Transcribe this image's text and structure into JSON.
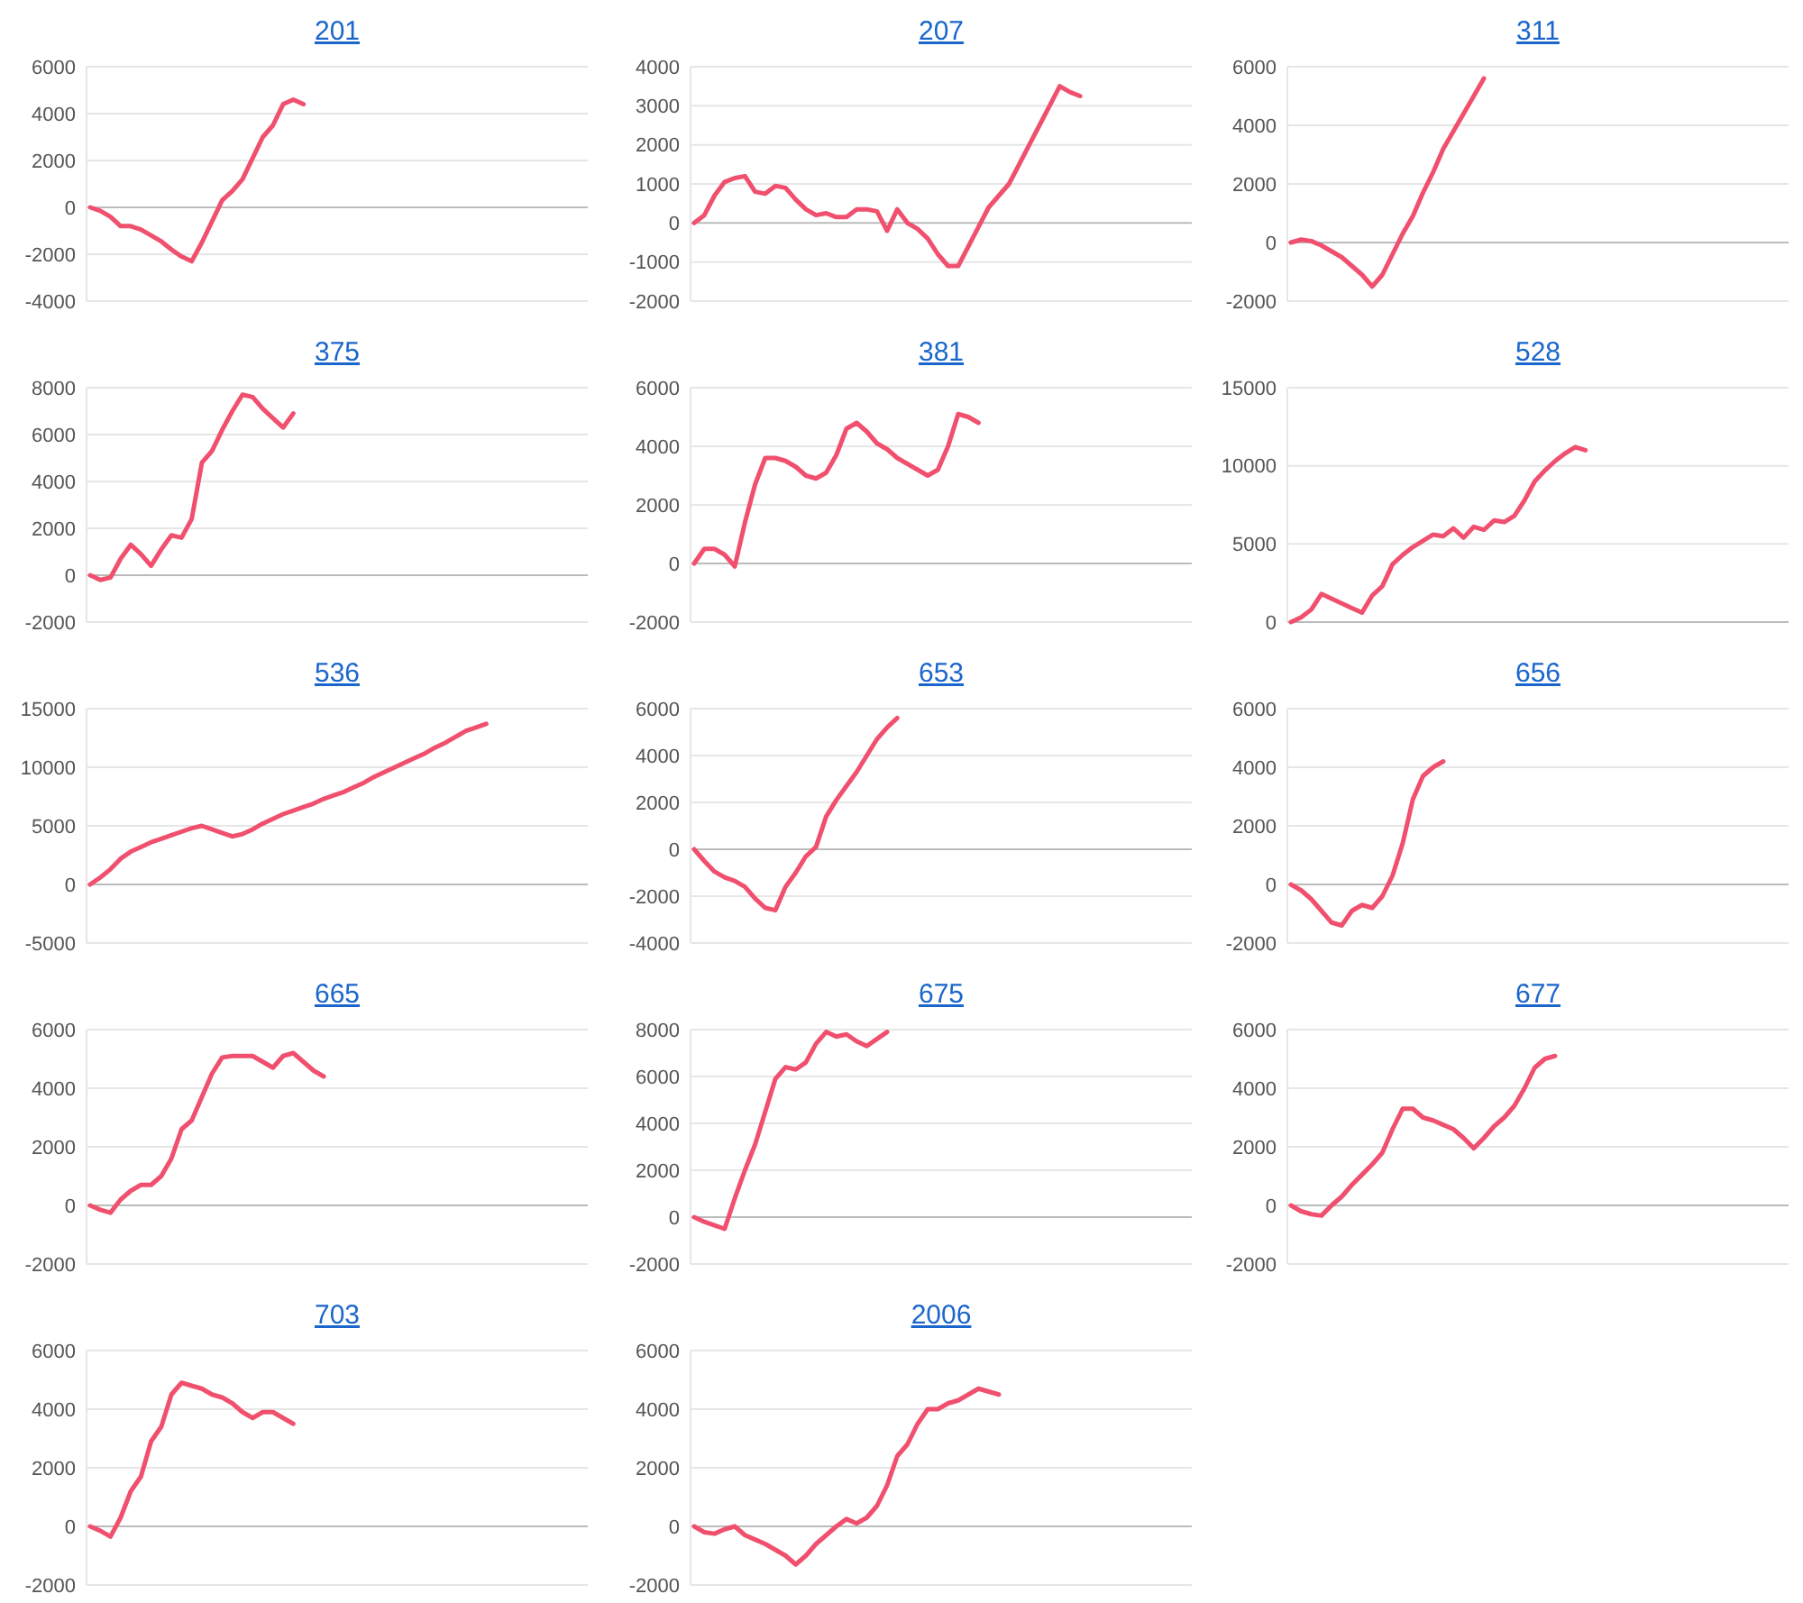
{
  "chart_data": [
    {
      "type": "line",
      "title": "201",
      "categories": [
        null,
        null,
        null,
        null,
        null,
        null,
        null,
        null,
        null,
        null,
        null,
        null,
        null,
        null,
        null,
        null,
        null,
        null,
        null,
        null,
        null,
        null,
        null,
        null,
        null,
        null,
        null,
        null,
        null,
        null,
        null,
        null,
        null,
        null,
        null,
        null,
        null,
        null,
        null,
        null,
        null,
        null,
        null,
        null,
        null,
        null,
        null,
        null,
        null,
        null
      ],
      "series": [
        {
          "color": "#f0506e",
          "values": [
            0,
            -150,
            -400,
            -800,
            -800,
            -950,
            -1200,
            -1450,
            -1800,
            -2100,
            -2300,
            -1500,
            -600,
            300,
            700,
            1200,
            2100,
            3000,
            3500,
            4400,
            4600,
            4400,
            null,
            null,
            null,
            null,
            null,
            null,
            null,
            null,
            null,
            null,
            null,
            null,
            null,
            null,
            null,
            null,
            null,
            null,
            null,
            null,
            null,
            null,
            null,
            null,
            null,
            null,
            null,
            null
          ]
        }
      ],
      "ylim": [
        -4000,
        6000
      ],
      "yticks": [
        -4000,
        -2000,
        0,
        2000,
        4000,
        6000
      ],
      "grid": "y",
      "tick_labels": "y"
    },
    {
      "type": "line",
      "title": "207",
      "categories": [
        null,
        null,
        null,
        null,
        null,
        null,
        null,
        null,
        null,
        null,
        null,
        null,
        null,
        null,
        null,
        null,
        null,
        null,
        null,
        null,
        null,
        null,
        null,
        null,
        null,
        null,
        null,
        null,
        null,
        null,
        null,
        null,
        null,
        null,
        null,
        null,
        null,
        null,
        null,
        null,
        null,
        null,
        null,
        null,
        null,
        null,
        null,
        null,
        null,
        null
      ],
      "series": [
        {
          "color": "#f0506e",
          "values": [
            0,
            200,
            700,
            1050,
            1150,
            1200,
            800,
            750,
            950,
            900,
            600,
            350,
            200,
            250,
            150,
            150,
            350,
            350,
            300,
            -200,
            350,
            0,
            -150,
            -400,
            -800,
            -1100,
            -1100,
            -600,
            -100,
            400,
            700,
            1000,
            1500,
            2000,
            2500,
            3000,
            3500,
            3350,
            3250,
            null,
            null,
            null,
            null,
            null,
            null,
            null,
            null,
            null,
            null,
            null
          ]
        }
      ],
      "ylim": [
        -2000,
        4000
      ],
      "yticks": [
        -2000,
        -1000,
        0,
        1000,
        2000,
        3000,
        4000
      ],
      "grid": "y",
      "tick_labels": "y"
    },
    {
      "type": "line",
      "title": "311",
      "categories": [
        null,
        null,
        null,
        null,
        null,
        null,
        null,
        null,
        null,
        null,
        null,
        null,
        null,
        null,
        null,
        null,
        null,
        null,
        null,
        null,
        null,
        null,
        null,
        null,
        null,
        null,
        null,
        null,
        null,
        null,
        null,
        null,
        null,
        null,
        null,
        null,
        null,
        null,
        null,
        null,
        null,
        null,
        null,
        null,
        null,
        null,
        null,
        null,
        null,
        null
      ],
      "series": [
        {
          "color": "#f0506e",
          "values": [
            0,
            100,
            50,
            -100,
            -300,
            -500,
            -800,
            -1100,
            -1500,
            -1100,
            -400,
            300,
            900,
            1700,
            2400,
            3200,
            3800,
            4400,
            5000,
            5600,
            null,
            null,
            null,
            null,
            null,
            null,
            null,
            null,
            null,
            null,
            null,
            null,
            null,
            null,
            null,
            null,
            null,
            null,
            null,
            null,
            null,
            null,
            null,
            null,
            null,
            null,
            null,
            null,
            null,
            null
          ]
        }
      ],
      "ylim": [
        -2000,
        6000
      ],
      "yticks": [
        -2000,
        0,
        2000,
        4000,
        6000
      ],
      "grid": "y",
      "tick_labels": "y"
    },
    {
      "type": "line",
      "title": "375",
      "categories": [
        null,
        null,
        null,
        null,
        null,
        null,
        null,
        null,
        null,
        null,
        null,
        null,
        null,
        null,
        null,
        null,
        null,
        null,
        null,
        null,
        null,
        null,
        null,
        null,
        null,
        null,
        null,
        null,
        null,
        null,
        null,
        null,
        null,
        null,
        null,
        null,
        null,
        null,
        null,
        null,
        null,
        null,
        null,
        null,
        null,
        null,
        null,
        null,
        null,
        null
      ],
      "series": [
        {
          "color": "#f0506e",
          "values": [
            0,
            -200,
            -100,
            700,
            1300,
            900,
            400,
            1100,
            1700,
            1600,
            2400,
            4800,
            5300,
            6200,
            7000,
            7700,
            7600,
            7100,
            6700,
            6300,
            6900,
            null,
            null,
            null,
            null,
            null,
            null,
            null,
            null,
            null,
            null,
            null,
            null,
            null,
            null,
            null,
            null,
            null,
            null,
            null,
            null,
            null,
            null,
            null,
            null,
            null,
            null,
            null,
            null,
            null
          ]
        }
      ],
      "ylim": [
        -2000,
        8000
      ],
      "yticks": [
        -2000,
        0,
        2000,
        4000,
        6000,
        8000
      ],
      "grid": "y",
      "tick_labels": "y"
    },
    {
      "type": "line",
      "title": "381",
      "categories": [
        null,
        null,
        null,
        null,
        null,
        null,
        null,
        null,
        null,
        null,
        null,
        null,
        null,
        null,
        null,
        null,
        null,
        null,
        null,
        null,
        null,
        null,
        null,
        null,
        null,
        null,
        null,
        null,
        null,
        null,
        null,
        null,
        null,
        null,
        null,
        null,
        null,
        null,
        null,
        null,
        null,
        null,
        null,
        null,
        null,
        null,
        null,
        null,
        null,
        null
      ],
      "series": [
        {
          "color": "#f0506e",
          "values": [
            0,
            500,
            500,
            300,
            -100,
            1400,
            2700,
            3600,
            3600,
            3500,
            3300,
            3000,
            2900,
            3100,
            3700,
            4600,
            4800,
            4500,
            4100,
            3900,
            3600,
            3400,
            3200,
            3000,
            3200,
            4000,
            5100,
            5000,
            4800,
            null,
            null,
            null,
            null,
            null,
            null,
            null,
            null,
            null,
            null,
            null,
            null,
            null,
            null,
            null,
            null,
            null,
            null,
            null,
            null,
            null
          ]
        }
      ],
      "ylim": [
        -2000,
        6000
      ],
      "yticks": [
        -2000,
        0,
        2000,
        4000,
        6000
      ],
      "grid": "y",
      "tick_labels": "y"
    },
    {
      "type": "line",
      "title": "528",
      "categories": [
        null,
        null,
        null,
        null,
        null,
        null,
        null,
        null,
        null,
        null,
        null,
        null,
        null,
        null,
        null,
        null,
        null,
        null,
        null,
        null,
        null,
        null,
        null,
        null,
        null,
        null,
        null,
        null,
        null,
        null,
        null,
        null,
        null,
        null,
        null,
        null,
        null,
        null,
        null,
        null,
        null,
        null,
        null,
        null,
        null,
        null,
        null,
        null,
        null,
        null
      ],
      "series": [
        {
          "color": "#f0506e",
          "values": [
            0,
            300,
            800,
            1800,
            1500,
            1200,
            900,
            600,
            1700,
            2300,
            3700,
            4300,
            4800,
            5200,
            5600,
            5500,
            6000,
            5400,
            6100,
            5900,
            6500,
            6400,
            6800,
            7800,
            9000,
            9700,
            10300,
            10800,
            11200,
            11000,
            null,
            null,
            null,
            null,
            null,
            null,
            null,
            null,
            null,
            null,
            null,
            null,
            null,
            null,
            null,
            null,
            null,
            null,
            null,
            null
          ]
        }
      ],
      "ylim": [
        0,
        15000
      ],
      "yticks": [
        0,
        5000,
        10000,
        15000
      ],
      "grid": "y",
      "tick_labels": "y"
    },
    {
      "type": "line",
      "title": "536",
      "categories": [
        null,
        null,
        null,
        null,
        null,
        null,
        null,
        null,
        null,
        null,
        null,
        null,
        null,
        null,
        null,
        null,
        null,
        null,
        null,
        null,
        null,
        null,
        null,
        null,
        null,
        null,
        null,
        null,
        null,
        null,
        null,
        null,
        null,
        null,
        null,
        null,
        null,
        null,
        null,
        null,
        null,
        null,
        null,
        null,
        null,
        null,
        null,
        null,
        null,
        null
      ],
      "series": [
        {
          "color": "#f0506e",
          "values": [
            0,
            600,
            1300,
            2200,
            2800,
            3200,
            3600,
            3900,
            4200,
            4500,
            4800,
            5000,
            4700,
            4400,
            4100,
            4300,
            4700,
            5200,
            5600,
            6000,
            6300,
            6600,
            6900,
            7300,
            7600,
            7900,
            8300,
            8700,
            9200,
            9600,
            10000,
            10400,
            10800,
            11200,
            11700,
            12100,
            12600,
            13100,
            13400,
            13700,
            null,
            null,
            null,
            null,
            null,
            null,
            null,
            null,
            null,
            null
          ]
        }
      ],
      "ylim": [
        -5000,
        15000
      ],
      "yticks": [
        -5000,
        0,
        5000,
        10000,
        15000
      ],
      "grid": "y",
      "tick_labels": "y"
    },
    {
      "type": "line",
      "title": "653",
      "categories": [
        null,
        null,
        null,
        null,
        null,
        null,
        null,
        null,
        null,
        null,
        null,
        null,
        null,
        null,
        null,
        null,
        null,
        null,
        null,
        null,
        null,
        null,
        null,
        null,
        null,
        null,
        null,
        null,
        null,
        null,
        null,
        null,
        null,
        null,
        null,
        null,
        null,
        null,
        null,
        null,
        null,
        null,
        null,
        null,
        null,
        null,
        null,
        null,
        null,
        null
      ],
      "series": [
        {
          "color": "#f0506e",
          "values": [
            0,
            -500,
            -950,
            -1200,
            -1350,
            -1600,
            -2100,
            -2500,
            -2600,
            -1600,
            -1000,
            -300,
            100,
            1400,
            2100,
            2700,
            3300,
            4000,
            4700,
            5200,
            5600,
            null,
            null,
            null,
            null,
            null,
            null,
            null,
            null,
            null,
            null,
            null,
            null,
            null,
            null,
            null,
            null,
            null,
            null,
            null,
            null,
            null,
            null,
            null,
            null,
            null,
            null,
            null,
            null,
            null
          ]
        }
      ],
      "ylim": [
        -4000,
        6000
      ],
      "yticks": [
        -4000,
        -2000,
        0,
        2000,
        4000,
        6000
      ],
      "grid": "y",
      "tick_labels": "y"
    },
    {
      "type": "line",
      "title": "656",
      "categories": [
        null,
        null,
        null,
        null,
        null,
        null,
        null,
        null,
        null,
        null,
        null,
        null,
        null,
        null,
        null,
        null,
        null,
        null,
        null,
        null,
        null,
        null,
        null,
        null,
        null,
        null,
        null,
        null,
        null,
        null,
        null,
        null,
        null,
        null,
        null,
        null,
        null,
        null,
        null,
        null,
        null,
        null,
        null,
        null,
        null,
        null,
        null,
        null,
        null,
        null
      ],
      "series": [
        {
          "color": "#f0506e",
          "values": [
            0,
            -200,
            -500,
            -900,
            -1300,
            -1400,
            -900,
            -700,
            -800,
            -400,
            300,
            1400,
            2900,
            3700,
            4000,
            4200,
            null,
            null,
            null,
            null,
            null,
            null,
            null,
            null,
            null,
            null,
            null,
            null,
            null,
            null,
            null,
            null,
            null,
            null,
            null,
            null,
            null,
            null,
            null,
            null,
            null,
            null,
            null,
            null,
            null,
            null,
            null,
            null,
            null,
            null
          ]
        }
      ],
      "ylim": [
        -2000,
        6000
      ],
      "yticks": [
        -2000,
        0,
        2000,
        4000,
        6000
      ],
      "grid": "y",
      "tick_labels": "y"
    },
    {
      "type": "line",
      "title": "665",
      "categories": [
        null,
        null,
        null,
        null,
        null,
        null,
        null,
        null,
        null,
        null,
        null,
        null,
        null,
        null,
        null,
        null,
        null,
        null,
        null,
        null,
        null,
        null,
        null,
        null,
        null,
        null,
        null,
        null,
        null,
        null,
        null,
        null,
        null,
        null,
        null,
        null,
        null,
        null,
        null,
        null,
        null,
        null,
        null,
        null,
        null,
        null,
        null,
        null,
        null,
        null
      ],
      "series": [
        {
          "color": "#f0506e",
          "values": [
            0,
            -150,
            -250,
            200,
            500,
            700,
            700,
            1000,
            1600,
            2600,
            2900,
            3700,
            4500,
            5050,
            5100,
            5100,
            5100,
            4900,
            4700,
            5100,
            5200,
            4900,
            4600,
            4400,
            null,
            null,
            null,
            null,
            null,
            null,
            null,
            null,
            null,
            null,
            null,
            null,
            null,
            null,
            null,
            null,
            null,
            null,
            null,
            null,
            null,
            null,
            null,
            null,
            null,
            null
          ]
        }
      ],
      "ylim": [
        -2000,
        6000
      ],
      "yticks": [
        -2000,
        0,
        2000,
        4000,
        6000
      ],
      "grid": "y",
      "tick_labels": "y"
    },
    {
      "type": "line",
      "title": "675",
      "categories": [
        null,
        null,
        null,
        null,
        null,
        null,
        null,
        null,
        null,
        null,
        null,
        null,
        null,
        null,
        null,
        null,
        null,
        null,
        null,
        null,
        null,
        null,
        null,
        null,
        null,
        null,
        null,
        null,
        null,
        null,
        null,
        null,
        null,
        null,
        null,
        null,
        null,
        null,
        null,
        null,
        null,
        null,
        null,
        null,
        null,
        null,
        null,
        null,
        null,
        null
      ],
      "series": [
        {
          "color": "#f0506e",
          "values": [
            0,
            -200,
            -350,
            -500,
            800,
            2000,
            3100,
            4500,
            5900,
            6400,
            6300,
            6600,
            7400,
            7900,
            7700,
            7800,
            7500,
            7300,
            7600,
            7900,
            null,
            null,
            null,
            null,
            null,
            null,
            null,
            null,
            null,
            null,
            null,
            null,
            null,
            null,
            null,
            null,
            null,
            null,
            null,
            null,
            null,
            null,
            null,
            null,
            null,
            null,
            null,
            null,
            null,
            null
          ]
        }
      ],
      "ylim": [
        -2000,
        8000
      ],
      "yticks": [
        -2000,
        0,
        2000,
        4000,
        6000,
        8000
      ],
      "grid": "y",
      "tick_labels": "y"
    },
    {
      "type": "line",
      "title": "677",
      "categories": [
        null,
        null,
        null,
        null,
        null,
        null,
        null,
        null,
        null,
        null,
        null,
        null,
        null,
        null,
        null,
        null,
        null,
        null,
        null,
        null,
        null,
        null,
        null,
        null,
        null,
        null,
        null,
        null,
        null,
        null,
        null,
        null,
        null,
        null,
        null,
        null,
        null,
        null,
        null,
        null,
        null,
        null,
        null,
        null,
        null,
        null,
        null,
        null,
        null,
        null
      ],
      "series": [
        {
          "color": "#f0506e",
          "values": [
            0,
            -200,
            -300,
            -350,
            0,
            300,
            700,
            1050,
            1400,
            1800,
            2600,
            3300,
            3300,
            3000,
            2900,
            2750,
            2600,
            2300,
            1950,
            2300,
            2700,
            3000,
            3400,
            4000,
            4700,
            5000,
            5100,
            null,
            null,
            null,
            null,
            null,
            null,
            null,
            null,
            null,
            null,
            null,
            null,
            null,
            null,
            null,
            null,
            null,
            null,
            null,
            null,
            null,
            null,
            null
          ]
        }
      ],
      "ylim": [
        -2000,
        6000
      ],
      "yticks": [
        -2000,
        0,
        2000,
        4000,
        6000
      ],
      "grid": "y",
      "tick_labels": "y"
    },
    {
      "type": "line",
      "title": "703",
      "categories": [
        null,
        null,
        null,
        null,
        null,
        null,
        null,
        null,
        null,
        null,
        null,
        null,
        null,
        null,
        null,
        null,
        null,
        null,
        null,
        null,
        null,
        null,
        null,
        null,
        null,
        null,
        null,
        null,
        null,
        null,
        null,
        null,
        null,
        null,
        null,
        null,
        null,
        null,
        null,
        null,
        null,
        null,
        null,
        null,
        null,
        null,
        null,
        null,
        null,
        null
      ],
      "series": [
        {
          "color": "#f0506e",
          "values": [
            0,
            -150,
            -350,
            300,
            1200,
            1700,
            2900,
            3400,
            4500,
            4900,
            4800,
            4700,
            4500,
            4400,
            4200,
            3900,
            3700,
            3900,
            3900,
            3700,
            3500,
            null,
            null,
            null,
            null,
            null,
            null,
            null,
            null,
            null,
            null,
            null,
            null,
            null,
            null,
            null,
            null,
            null,
            null,
            null,
            null,
            null,
            null,
            null,
            null,
            null,
            null,
            null,
            null,
            null
          ]
        }
      ],
      "ylim": [
        -2000,
        6000
      ],
      "yticks": [
        -2000,
        0,
        2000,
        4000,
        6000
      ],
      "grid": "y",
      "tick_labels": "y"
    },
    {
      "type": "line",
      "title": "2006",
      "categories": [
        null,
        null,
        null,
        null,
        null,
        null,
        null,
        null,
        null,
        null,
        null,
        null,
        null,
        null,
        null,
        null,
        null,
        null,
        null,
        null,
        null,
        null,
        null,
        null,
        null,
        null,
        null,
        null,
        null,
        null,
        null,
        null,
        null,
        null,
        null,
        null,
        null,
        null,
        null,
        null,
        null,
        null,
        null,
        null,
        null,
        null,
        null,
        null,
        null,
        null
      ],
      "series": [
        {
          "color": "#f0506e",
          "values": [
            0,
            -200,
            -250,
            -100,
            0,
            -300,
            -450,
            -600,
            -800,
            -1000,
            -1300,
            -1000,
            -600,
            -300,
            0,
            250,
            100,
            300,
            700,
            1400,
            2400,
            2800,
            3500,
            4000,
            4000,
            4200,
            4300,
            4500,
            4700,
            4600,
            4500,
            null,
            null,
            null,
            null,
            null,
            null,
            null,
            null,
            null,
            null,
            null,
            null,
            null,
            null,
            null,
            null,
            null,
            null,
            null
          ]
        }
      ],
      "ylim": [
        -2000,
        6000
      ],
      "yticks": [
        -2000,
        0,
        2000,
        4000,
        6000
      ],
      "grid": "y",
      "tick_labels": "y"
    }
  ]
}
